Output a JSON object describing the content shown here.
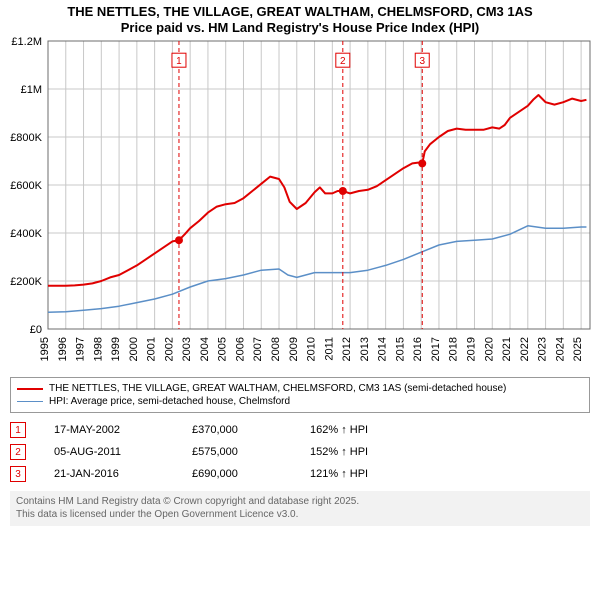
{
  "title_line1": "THE NETTLES, THE VILLAGE, GREAT WALTHAM, CHELMSFORD, CM3 1AS",
  "title_line2": "Price paid vs. HM Land Registry's House Price Index (HPI)",
  "title_fontsize": 13,
  "chart": {
    "type": "line",
    "background_color": "#ffffff",
    "grid_color": "#c8c8c8",
    "axis_color": "#6c6c6c",
    "x": {
      "min": 1995,
      "max": 2025.5,
      "ticks": [
        1995,
        1996,
        1997,
        1998,
        1999,
        2000,
        2001,
        2002,
        2003,
        2004,
        2005,
        2006,
        2007,
        2008,
        2009,
        2010,
        2011,
        2012,
        2013,
        2014,
        2015,
        2016,
        2017,
        2018,
        2019,
        2020,
        2021,
        2022,
        2023,
        2024,
        2025
      ],
      "tick_labels": [
        "1995",
        "1996",
        "1997",
        "1998",
        "1999",
        "2000",
        "2001",
        "2002",
        "2003",
        "2004",
        "2005",
        "2006",
        "2007",
        "2008",
        "2009",
        "2010",
        "2011",
        "2012",
        "2013",
        "2014",
        "2015",
        "2016",
        "2017",
        "2018",
        "2019",
        "2020",
        "2021",
        "2022",
        "2023",
        "2024",
        "2025"
      ],
      "tick_rotation": -90,
      "tick_fontsize": 11
    },
    "y": {
      "min": 0,
      "max": 1200000,
      "ticks": [
        0,
        200000,
        400000,
        600000,
        800000,
        1000000,
        1200000
      ],
      "tick_labels": [
        "£0",
        "£200K",
        "£400K",
        "£600K",
        "£800K",
        "£1M",
        "£1.2M"
      ],
      "tick_fontsize": 11
    },
    "series": [
      {
        "id": "price_paid",
        "label": "THE NETTLES, THE VILLAGE, GREAT WALTHAM, CHELMSFORD, CM3 1AS (semi-detached house)",
        "color": "#e00000",
        "line_width": 2,
        "points": [
          [
            1995.0,
            180000
          ],
          [
            1995.5,
            180000
          ],
          [
            1996.0,
            180000
          ],
          [
            1996.5,
            182000
          ],
          [
            1997.0,
            185000
          ],
          [
            1997.5,
            190000
          ],
          [
            1998.0,
            200000
          ],
          [
            1998.5,
            215000
          ],
          [
            1999.0,
            225000
          ],
          [
            1999.5,
            245000
          ],
          [
            2000.0,
            265000
          ],
          [
            2000.5,
            290000
          ],
          [
            2001.0,
            315000
          ],
          [
            2001.5,
            340000
          ],
          [
            2002.0,
            365000
          ],
          [
            2002.37,
            370000
          ],
          [
            2002.7,
            395000
          ],
          [
            2003.0,
            420000
          ],
          [
            2003.5,
            450000
          ],
          [
            2004.0,
            485000
          ],
          [
            2004.5,
            510000
          ],
          [
            2005.0,
            520000
          ],
          [
            2005.5,
            525000
          ],
          [
            2006.0,
            545000
          ],
          [
            2006.5,
            575000
          ],
          [
            2007.0,
            605000
          ],
          [
            2007.5,
            635000
          ],
          [
            2008.0,
            625000
          ],
          [
            2008.3,
            590000
          ],
          [
            2008.6,
            530000
          ],
          [
            2009.0,
            500000
          ],
          [
            2009.5,
            525000
          ],
          [
            2010.0,
            570000
          ],
          [
            2010.3,
            590000
          ],
          [
            2010.6,
            565000
          ],
          [
            2011.0,
            565000
          ],
          [
            2011.3,
            575000
          ],
          [
            2011.59,
            575000
          ],
          [
            2012.0,
            565000
          ],
          [
            2012.5,
            575000
          ],
          [
            2013.0,
            580000
          ],
          [
            2013.5,
            595000
          ],
          [
            2014.0,
            620000
          ],
          [
            2014.5,
            645000
          ],
          [
            2015.0,
            670000
          ],
          [
            2015.5,
            690000
          ],
          [
            2016.0,
            695000
          ],
          [
            2016.06,
            690000
          ],
          [
            2016.2,
            740000
          ],
          [
            2016.5,
            770000
          ],
          [
            2017.0,
            800000
          ],
          [
            2017.5,
            825000
          ],
          [
            2018.0,
            835000
          ],
          [
            2018.5,
            830000
          ],
          [
            2019.0,
            830000
          ],
          [
            2019.5,
            830000
          ],
          [
            2020.0,
            840000
          ],
          [
            2020.4,
            835000
          ],
          [
            2020.7,
            850000
          ],
          [
            2021.0,
            880000
          ],
          [
            2021.5,
            905000
          ],
          [
            2022.0,
            930000
          ],
          [
            2022.3,
            955000
          ],
          [
            2022.6,
            975000
          ],
          [
            2023.0,
            945000
          ],
          [
            2023.5,
            935000
          ],
          [
            2024.0,
            945000
          ],
          [
            2024.5,
            960000
          ],
          [
            2025.0,
            950000
          ],
          [
            2025.3,
            955000
          ]
        ]
      },
      {
        "id": "hpi",
        "label": "HPI: Average price, semi-detached house, Chelmsford",
        "color": "#5b8fc7",
        "line_width": 1.5,
        "points": [
          [
            1995.0,
            70000
          ],
          [
            1996.0,
            72000
          ],
          [
            1997.0,
            78000
          ],
          [
            1998.0,
            85000
          ],
          [
            1999.0,
            95000
          ],
          [
            2000.0,
            110000
          ],
          [
            2001.0,
            125000
          ],
          [
            2002.0,
            145000
          ],
          [
            2003.0,
            175000
          ],
          [
            2004.0,
            200000
          ],
          [
            2005.0,
            210000
          ],
          [
            2006.0,
            225000
          ],
          [
            2007.0,
            245000
          ],
          [
            2008.0,
            250000
          ],
          [
            2008.5,
            225000
          ],
          [
            2009.0,
            215000
          ],
          [
            2010.0,
            235000
          ],
          [
            2011.0,
            235000
          ],
          [
            2012.0,
            235000
          ],
          [
            2013.0,
            245000
          ],
          [
            2014.0,
            265000
          ],
          [
            2015.0,
            290000
          ],
          [
            2016.0,
            320000
          ],
          [
            2017.0,
            350000
          ],
          [
            2018.0,
            365000
          ],
          [
            2019.0,
            370000
          ],
          [
            2020.0,
            375000
          ],
          [
            2021.0,
            395000
          ],
          [
            2022.0,
            430000
          ],
          [
            2023.0,
            420000
          ],
          [
            2024.0,
            420000
          ],
          [
            2025.0,
            425000
          ],
          [
            2025.3,
            425000
          ]
        ]
      }
    ],
    "sale_markers": [
      {
        "n": "1",
        "x": 2002.37,
        "y": 370000,
        "label_y": 1120000
      },
      {
        "n": "2",
        "x": 2011.59,
        "y": 575000,
        "label_y": 1120000
      },
      {
        "n": "3",
        "x": 2016.06,
        "y": 690000,
        "label_y": 1120000
      }
    ],
    "marker_line_color": "#e00000",
    "marker_line_dash": "4,3",
    "marker_dot_color": "#e00000",
    "marker_dot_radius": 4,
    "marker_badge_border": "#e00000",
    "marker_badge_text": "#e00000"
  },
  "legend": {
    "items": [
      {
        "color": "#e00000",
        "width": 2,
        "label": "THE NETTLES, THE VILLAGE, GREAT WALTHAM, CHELMSFORD, CM3 1AS (semi-detached house)"
      },
      {
        "color": "#5b8fc7",
        "width": 1.5,
        "label": "HPI: Average price, semi-detached house, Chelmsford"
      }
    ]
  },
  "sales_table": {
    "rows": [
      {
        "n": "1",
        "date": "17-MAY-2002",
        "price": "£370,000",
        "pct": "162% ↑ HPI"
      },
      {
        "n": "2",
        "date": "05-AUG-2011",
        "price": "£575,000",
        "pct": "152% ↑ HPI"
      },
      {
        "n": "3",
        "date": "21-JAN-2016",
        "price": "£690,000",
        "pct": "121% ↑ HPI"
      }
    ]
  },
  "footer": {
    "line1": "Contains HM Land Registry data © Crown copyright and database right 2025.",
    "line2": "This data is licensed under the Open Government Licence v3.0."
  }
}
